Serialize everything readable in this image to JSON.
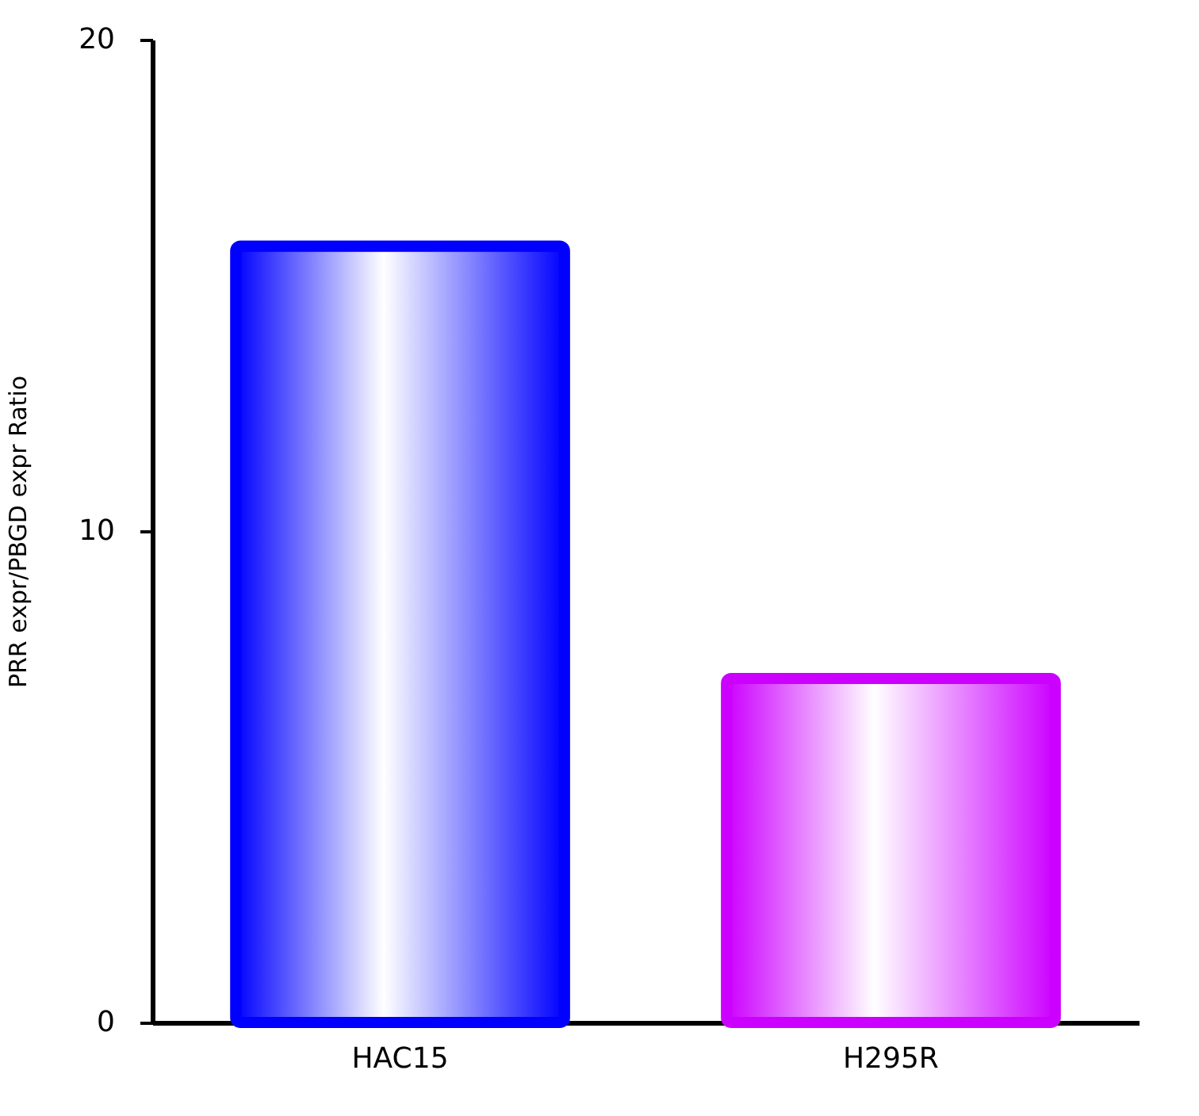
{
  "chart_data": {
    "type": "bar",
    "ylabel": "PRR expr/PBGD expr Ratio",
    "categories": [
      "HAC15",
      "H295R"
    ],
    "values": [
      15.8,
      7.0
    ],
    "colors": [
      "#0000ff",
      "#cc00ff"
    ],
    "ylim": [
      0,
      20
    ],
    "yticks": [
      0,
      10,
      20
    ],
    "grid": false
  }
}
